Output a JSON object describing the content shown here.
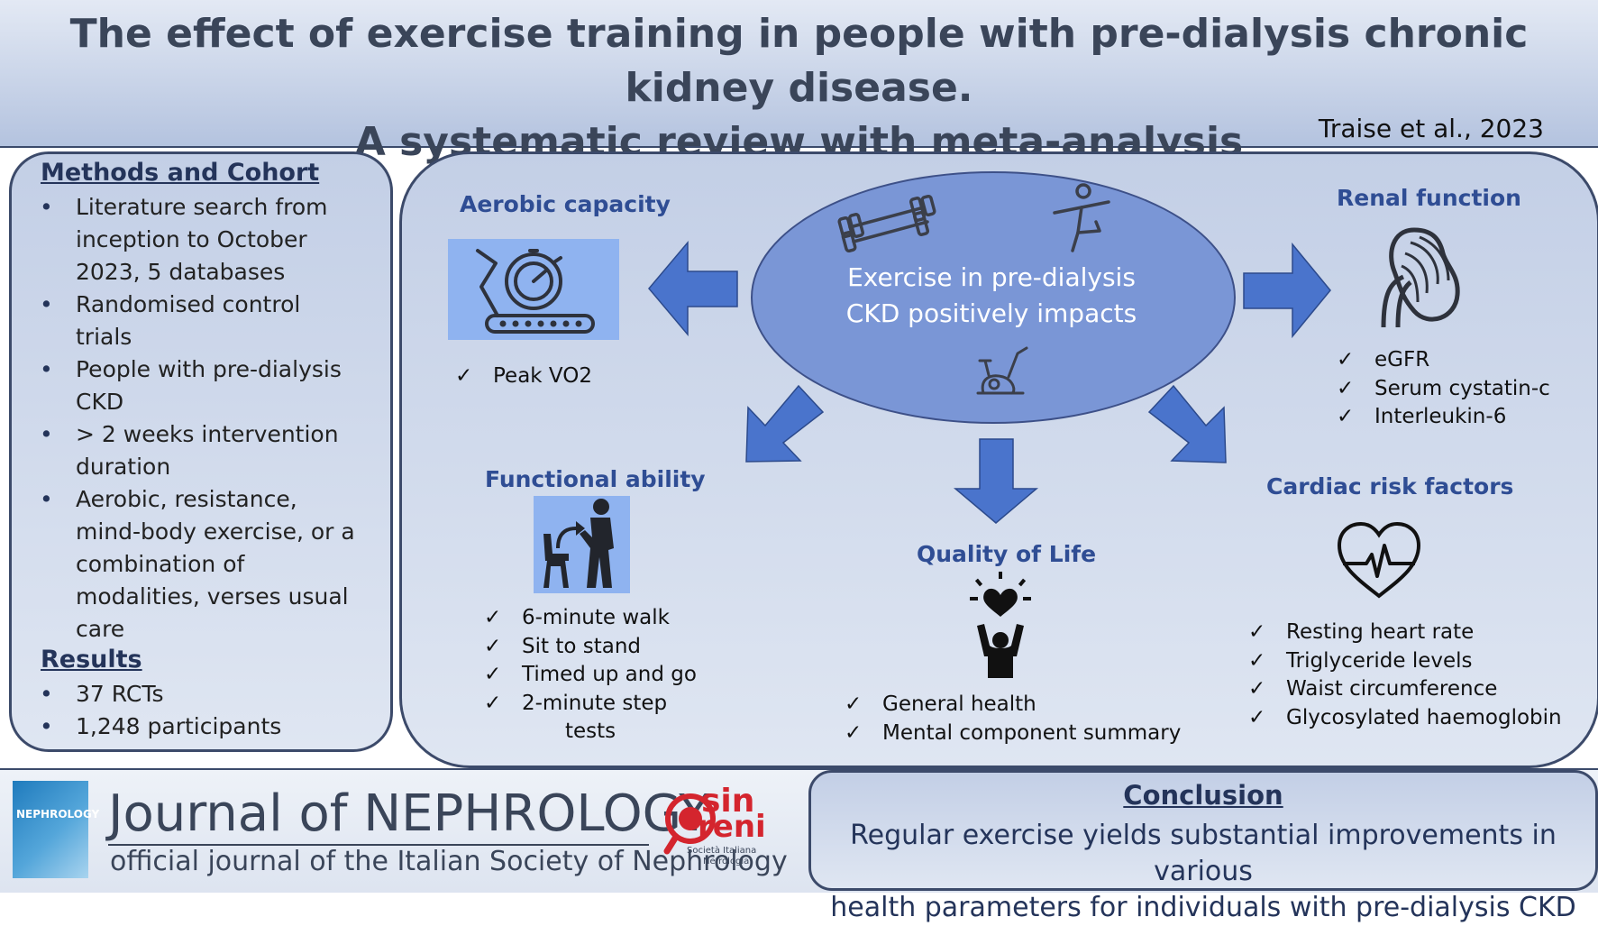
{
  "header": {
    "title_line1": "The effect of exercise training in people with pre-dialysis chronic kidney disease.",
    "title_line2": "A systematic review with meta-analysis",
    "author": "Traise et al., 2023"
  },
  "methods": {
    "heading": "Methods and Cohort",
    "items": [
      [
        "Literature  search from",
        "inception to October",
        "2023, 5 databases"
      ],
      [
        "Randomised control",
        "trials"
      ],
      [
        "People with pre-dialysis",
        "CKD"
      ],
      [
        "> 2 weeks intervention",
        "duration"
      ],
      [
        "Aerobic, resistance,",
        "mind-body exercise, or a",
        "combination of",
        "modalities, verses usual",
        "care"
      ]
    ],
    "results_heading": "Results",
    "results": [
      "37 RCTs",
      "1,248 participants"
    ]
  },
  "center": {
    "line1": "Exercise in pre-dialysis",
    "line2": "CKD positively impacts"
  },
  "outcomes": {
    "aerobic": {
      "heading": "Aerobic capacity",
      "items": [
        "Peak VO2"
      ],
      "icon": "treadmill-icon"
    },
    "renal": {
      "heading": "Renal function",
      "items": [
        "eGFR",
        "Serum cystatin-c",
        "Interleukin-6"
      ],
      "icon": "kidney-icon"
    },
    "functional": {
      "heading": "Functional ability",
      "items": [
        "6-minute walk",
        "Sit to stand",
        "Timed up and go",
        "2-minute step"
      ],
      "item_continuation": "tests",
      "icon": "sit-to-stand-icon"
    },
    "qol": {
      "heading": "Quality of Life",
      "items": [
        "General health",
        "Mental component summary"
      ],
      "icon": "person-heart-icon"
    },
    "cardiac": {
      "heading": "Cardiac risk factors",
      "items": [
        "Resting heart rate",
        "Triglyceride levels",
        "Waist circumference",
        "Glycosylated haemoglobin"
      ],
      "icon": "heart-pulse-icon"
    }
  },
  "check_mark": "✓",
  "footer": {
    "journal_title": "Journal of NEPHROLOGY",
    "journal_sub": "official journal of the Italian Society of Nephrology",
    "cover_title": "NEPHROLOGY",
    "logo_line1": "sin",
    "logo_line2": "reni",
    "logo_line3": "Società Italiana",
    "logo_line4": "Nefrologia"
  },
  "conclusion": {
    "heading": "Conclusion",
    "line1": "Regular exercise yields substantial improvements in various",
    "line2": "health parameters for individuals with pre-dialysis CKD"
  },
  "colors": {
    "accent": "#2f4d94",
    "arrow": "#4a74cc",
    "ellipse": "#7a96d6",
    "panel": "#c8d3e8"
  }
}
